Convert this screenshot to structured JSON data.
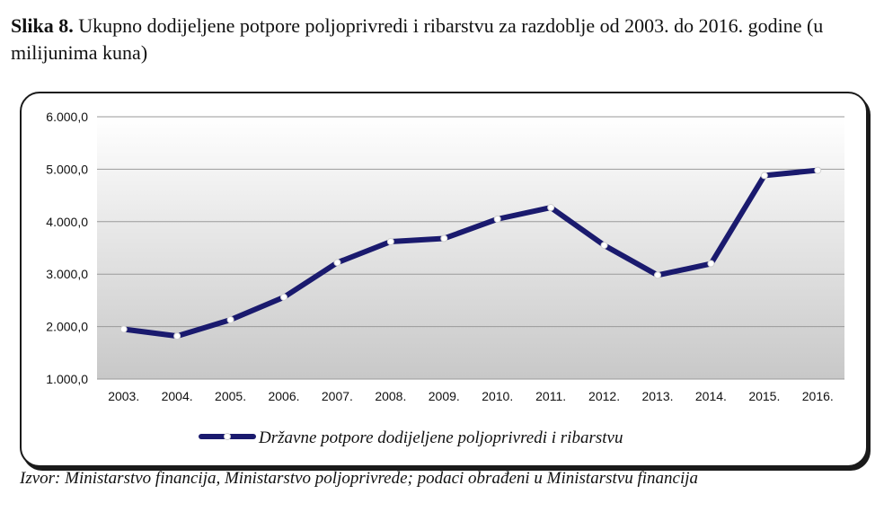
{
  "figure": {
    "label": "Slika 8.",
    "caption": "Ukupno dodijeljene potpore poljoprivredi i ribarstvu za razdoblje od 2003. do 2016. godine (u milijunima kuna)",
    "source": "Izvor: Ministarstvo financija, Ministarstvo poljoprivrede; podaci obrađeni u Ministarstvu financija"
  },
  "chart_data": {
    "type": "line",
    "categories": [
      "2003.",
      "2004.",
      "2005.",
      "2006.",
      "2007.",
      "2008.",
      "2009.",
      "2010.",
      "2011.",
      "2012.",
      "2013.",
      "2014.",
      "2015.",
      "2016."
    ],
    "series": [
      {
        "name": "Državne potpore dodijeljene poljoprivredi i ribarstvu",
        "values": [
          1950,
          1820,
          2130,
          2560,
          3220,
          3620,
          3680,
          4050,
          4270,
          3550,
          2980,
          3200,
          4880,
          4980
        ],
        "color": "#1a1a6e"
      }
    ],
    "ylim": [
      1000,
      6000
    ],
    "yticks": [
      "1.000,0",
      "2.000,0",
      "3.000,0",
      "4.000,0",
      "5.000,0",
      "6.000,0"
    ],
    "ytick_values": [
      1000,
      2000,
      3000,
      4000,
      5000,
      6000
    ],
    "grid": true,
    "legend": "bottom"
  }
}
